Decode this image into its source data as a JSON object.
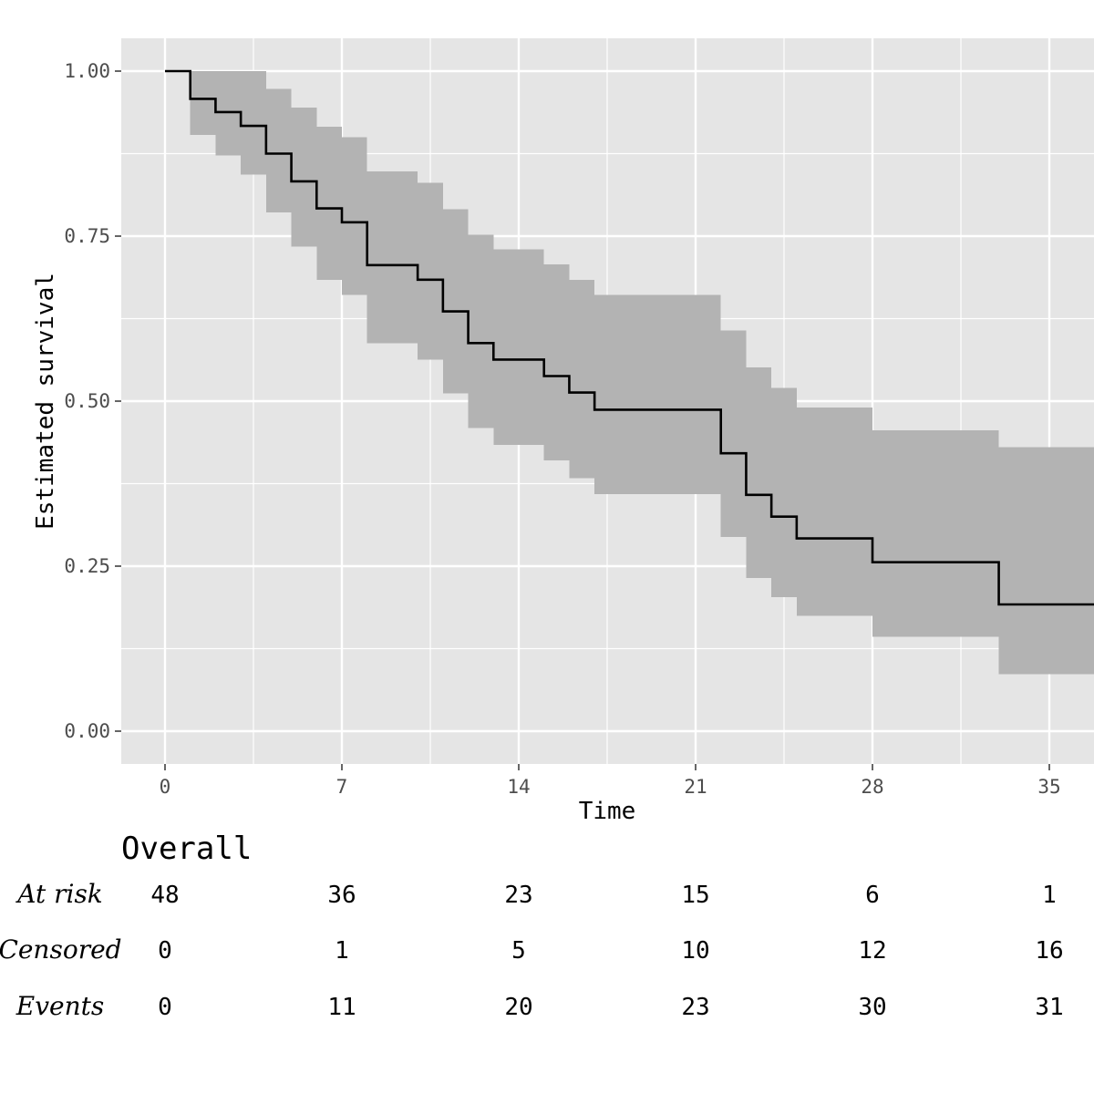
{
  "chart_data": {
    "type": "line",
    "subtype": "kaplan-meier step curve with confidence band",
    "xlabel": "Time",
    "ylabel": "Estimated survival",
    "xlim": [
      -4,
      41
    ],
    "ylim": [
      -0.05,
      1.05
    ],
    "x_ticks": [
      0,
      7,
      14,
      21,
      28,
      35
    ],
    "y_ticks": [
      0,
      0.25,
      0.5,
      0.75,
      1.0
    ],
    "y_tick_labels": [
      "0.00",
      "0.25",
      "0.50",
      "0.75",
      "1.00"
    ],
    "grid": true,
    "colors": {
      "panel": "#e5e5e5",
      "grid": "#ffffff",
      "line": "#000000",
      "band": "#b3b3b3"
    },
    "series": [
      {
        "steps": [
          {
            "x": 0,
            "y": 1.0,
            "lower": 1.0,
            "upper": 1.0
          },
          {
            "x": 1,
            "y": 0.958,
            "lower": 0.903,
            "upper": 1.0
          },
          {
            "x": 2,
            "y": 0.938,
            "lower": 0.872,
            "upper": 1.0
          },
          {
            "x": 3,
            "y": 0.917,
            "lower": 0.843,
            "upper": 1.0
          },
          {
            "x": 4,
            "y": 0.875,
            "lower": 0.786,
            "upper": 0.973
          },
          {
            "x": 5,
            "y": 0.833,
            "lower": 0.734,
            "upper": 0.945
          },
          {
            "x": 6,
            "y": 0.792,
            "lower": 0.684,
            "upper": 0.916
          },
          {
            "x": 7,
            "y": 0.771,
            "lower": 0.661,
            "upper": 0.9
          },
          {
            "x": 8,
            "y": 0.706,
            "lower": 0.588,
            "upper": 0.848
          },
          {
            "x": 10,
            "y": 0.684,
            "lower": 0.563,
            "upper": 0.831
          },
          {
            "x": 11,
            "y": 0.636,
            "lower": 0.512,
            "upper": 0.791
          },
          {
            "x": 12,
            "y": 0.588,
            "lower": 0.459,
            "upper": 0.752
          },
          {
            "x": 13,
            "y": 0.563,
            "lower": 0.434,
            "upper": 0.73
          },
          {
            "x": 15,
            "y": 0.538,
            "lower": 0.41,
            "upper": 0.707
          },
          {
            "x": 16,
            "y": 0.513,
            "lower": 0.383,
            "upper": 0.684
          },
          {
            "x": 17,
            "y": 0.487,
            "lower": 0.359,
            "upper": 0.661
          },
          {
            "x": 22,
            "y": 0.421,
            "lower": 0.294,
            "upper": 0.607
          },
          {
            "x": 23,
            "y": 0.358,
            "lower": 0.232,
            "upper": 0.551
          },
          {
            "x": 24,
            "y": 0.325,
            "lower": 0.203,
            "upper": 0.52
          },
          {
            "x": 25,
            "y": 0.292,
            "lower": 0.175,
            "upper": 0.49
          },
          {
            "x": 28,
            "y": 0.256,
            "lower": 0.143,
            "upper": 0.456
          },
          {
            "x": 33,
            "y": 0.192,
            "lower": 0.086,
            "upper": 0.43
          }
        ],
        "x_end": 40
      }
    ]
  },
  "risk_table": {
    "title": "Overall",
    "times": [
      0,
      7,
      14,
      21,
      28,
      35
    ],
    "rows": [
      {
        "label": "At risk",
        "values": [
          "48",
          "36",
          "23",
          "15",
          "6",
          "1"
        ]
      },
      {
        "label": "Censored",
        "values": [
          "0",
          "1",
          "5",
          "10",
          "12",
          "16"
        ]
      },
      {
        "label": "Events",
        "values": [
          "0",
          "11",
          "20",
          "23",
          "30",
          "31"
        ]
      }
    ]
  }
}
